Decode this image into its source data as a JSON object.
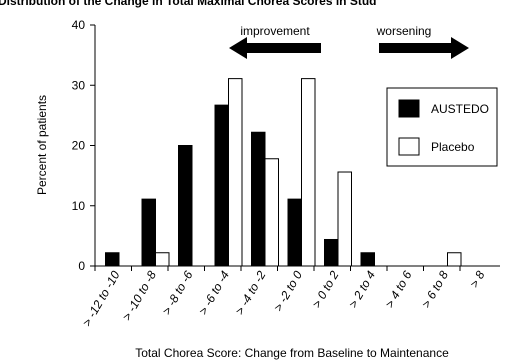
{
  "chart_data": {
    "type": "bar",
    "title": "Distribution of the Change in Total Maximal Chorea Scores in Stud",
    "xlabel": "Total Chorea Score: Change from Baseline to Maintenance",
    "ylabel": "Percent of patients",
    "ylim": [
      0,
      40
    ],
    "yticks": [
      0,
      10,
      20,
      30,
      40
    ],
    "categories": [
      "> -12 to -10",
      "> -10 to -8",
      "> -8 to -6",
      "> -6 to -4",
      "> -4 to -2",
      "> -2 to 0",
      "> 0 to 2",
      "> 2 to 4",
      "> 4 to 6",
      "> 6 to 8",
      "> 8"
    ],
    "series": [
      {
        "name": "AUSTEDO",
        "color": "#000000",
        "values": [
          2.2,
          11.1,
          20.0,
          26.7,
          22.2,
          11.1,
          4.4,
          2.2,
          0,
          0,
          0
        ]
      },
      {
        "name": "Placebo",
        "color": "#ffffff",
        "values": [
          0,
          2.2,
          0,
          31.1,
          17.8,
          31.1,
          15.6,
          0,
          0,
          2.2,
          0
        ]
      }
    ],
    "annotations": {
      "improvement": "improvement",
      "worsening": "worsening"
    },
    "legend_position": "top-right",
    "grid": false
  }
}
